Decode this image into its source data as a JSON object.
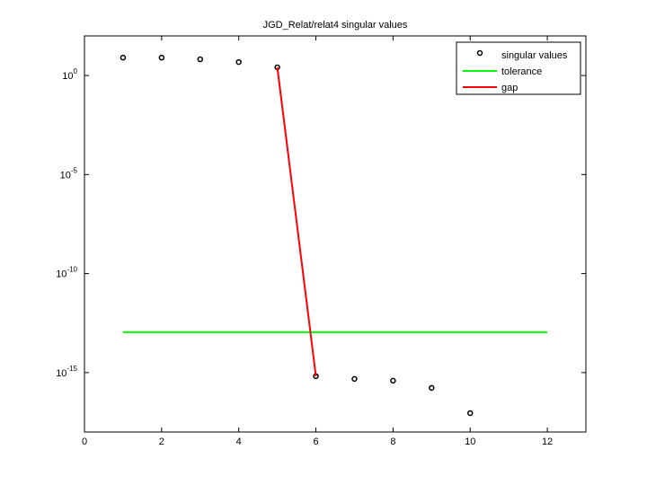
{
  "chart_data": {
    "type": "scatter",
    "title": "JGD_Relat/relat4 singular values",
    "log_y": true,
    "legend": "top-right",
    "xlim": [
      0,
      13
    ],
    "xticks": [
      0,
      2,
      4,
      6,
      8,
      10,
      12
    ],
    "ylim": [
      1e-18,
      100
    ],
    "yticks": [
      {
        "value": 1e-15,
        "label": "10^-15"
      },
      {
        "value": 1e-10,
        "label": "10^-10"
      },
      {
        "value": 1e-05,
        "label": "10^-5"
      },
      {
        "value": 1,
        "label": "10^0"
      }
    ],
    "series": [
      {
        "name": "singular values",
        "type": "scatter",
        "color": "#000000",
        "x": [
          1,
          2,
          3,
          4,
          5,
          6,
          7,
          8,
          9,
          10
        ],
        "values": [
          8,
          8,
          6.6,
          4.8,
          2.6,
          6.6e-16,
          4.8e-16,
          3.9e-16,
          1.7e-16,
          9e-18
        ]
      },
      {
        "name": "tolerance",
        "type": "line",
        "color": "#00ff00",
        "x": [
          1,
          12
        ],
        "values": [
          1.1e-13,
          1.1e-13
        ]
      },
      {
        "name": "gap",
        "type": "line",
        "color": "#ff0000",
        "x": [
          5,
          6
        ],
        "values": [
          2.6,
          6.6e-16
        ]
      }
    ]
  }
}
